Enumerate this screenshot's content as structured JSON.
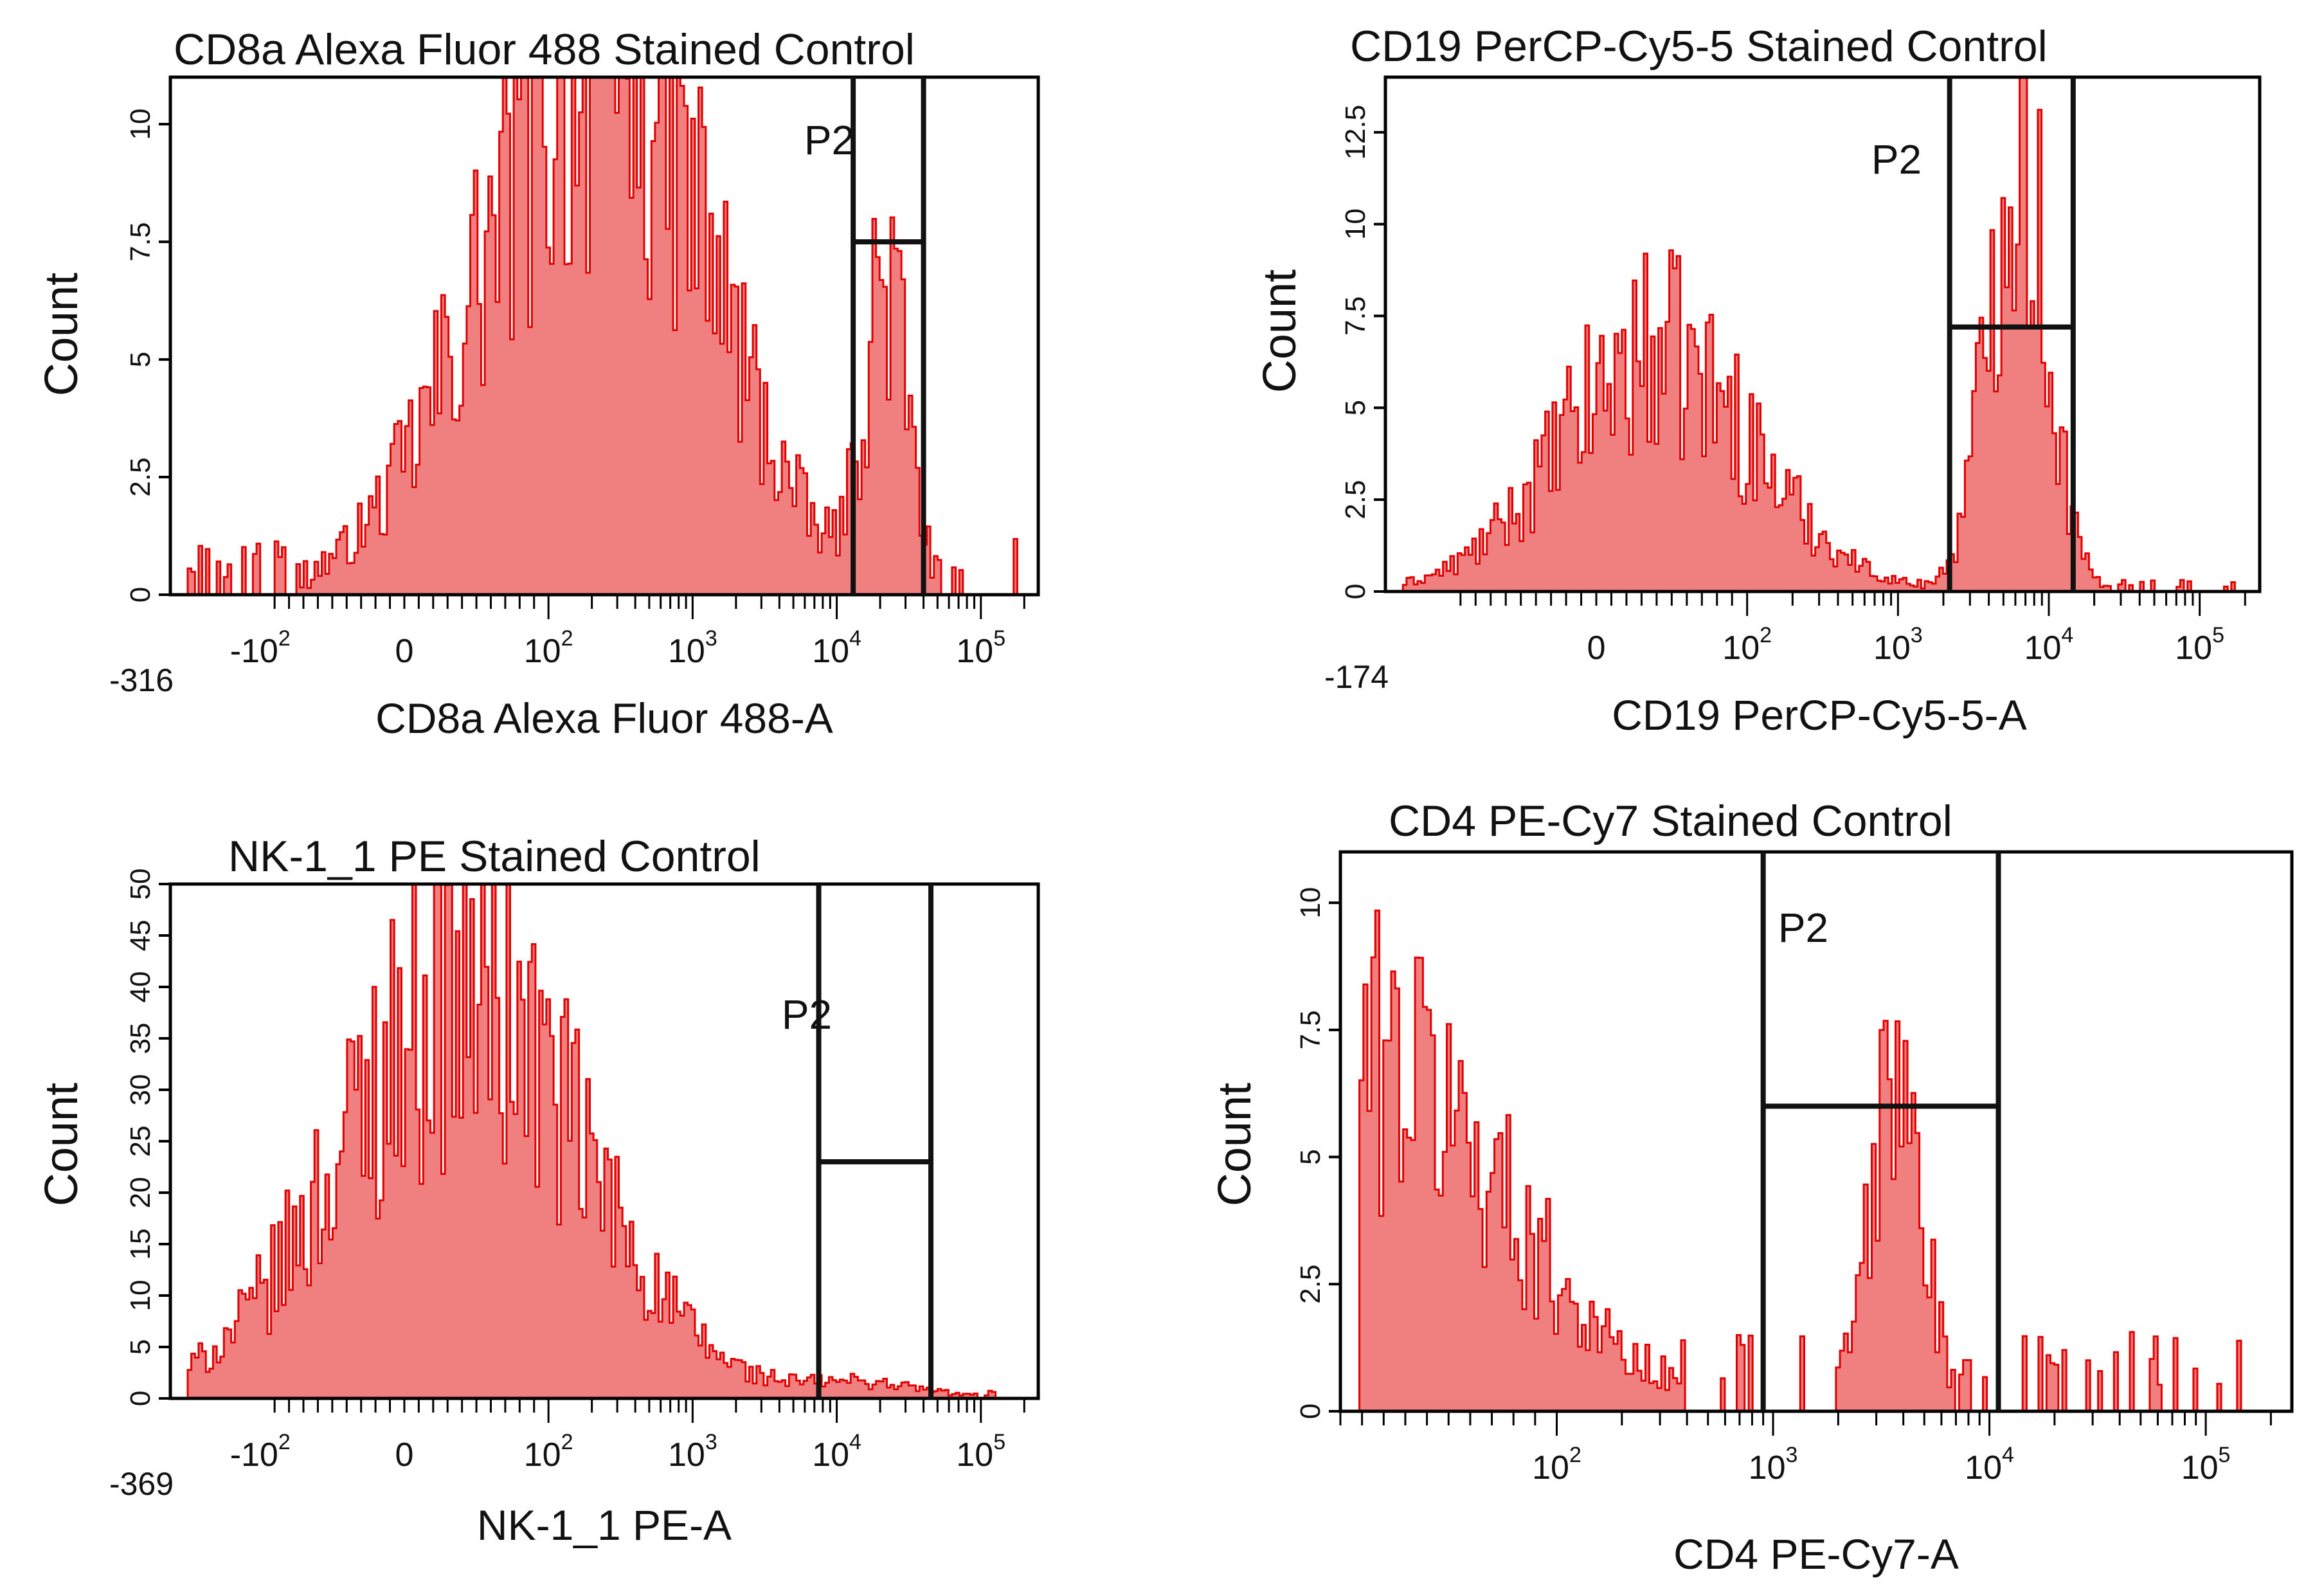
{
  "figure": "Flow cytometry stained-control histograms",
  "colors": {
    "fill": "#f08080",
    "stroke": "#e00000",
    "frame": "#000000",
    "gate": "#111111"
  },
  "chart_data": [
    {
      "id": "cd8a",
      "type": "histogram",
      "title": "CD8a Alexa Fluor 488 Stained Control",
      "xlabel": "CD8a Alexa Fluor 488-A",
      "ylabel": "Count",
      "xscale": "biexponential",
      "xlim": [
        -420,
        250000
      ],
      "ylim": [
        0,
        11
      ],
      "ytick_values": [
        0,
        2.5,
        5,
        7.5,
        10
      ],
      "ytick_labels": [
        "0",
        "2.5",
        "5",
        "7.5",
        "10"
      ],
      "xtick_labels": [
        {
          "value": -100,
          "base": "-10",
          "exp": "2"
        },
        {
          "value": 0,
          "base": "0",
          "exp": ""
        },
        {
          "value": 100,
          "base": "10",
          "exp": "2"
        },
        {
          "value": 1000,
          "base": "10",
          "exp": "3"
        },
        {
          "value": 10000,
          "base": "10",
          "exp": "4"
        },
        {
          "value": 100000,
          "base": "10",
          "exp": "5"
        }
      ],
      "axis_min_label": "-316",
      "gate": {
        "name": "P2",
        "x_range": [
          13000,
          40000
        ],
        "level": 7.5
      },
      "peaks": [
        {
          "center": 150,
          "height": 9.5,
          "width": 0.45
        },
        {
          "center": 600,
          "height": 3.5,
          "width": 0.35
        },
        {
          "center": 22000,
          "height": 6.5,
          "width": 0.09
        }
      ],
      "baseline": 0.6
    },
    {
      "id": "cd19",
      "type": "histogram",
      "title": "CD19 PerCP-Cy5-5 Stained Control",
      "xlabel": "CD19 PerCP-Cy5-5-A",
      "ylabel": "Count",
      "xscale": "biexponential",
      "xlim": [
        -250,
        250000
      ],
      "ylim": [
        0,
        14
      ],
      "ytick_values": [
        0,
        2.5,
        5,
        7.5,
        10,
        12.5
      ],
      "ytick_labels": [
        "0",
        "2.5",
        "5",
        "7.5",
        "10",
        "12.5"
      ],
      "xtick_labels": [
        {
          "value": 0,
          "base": "0",
          "exp": ""
        },
        {
          "value": 100,
          "base": "10",
          "exp": "2"
        },
        {
          "value": 1000,
          "base": "10",
          "exp": "3"
        },
        {
          "value": 10000,
          "base": "10",
          "exp": "4"
        },
        {
          "value": 100000,
          "base": "10",
          "exp": "5"
        }
      ],
      "axis_min_label": "-174",
      "gate": {
        "name": "P2",
        "x_range": [
          2200,
          14500
        ],
        "level": 7.2
      },
      "peaks": [
        {
          "center": 40,
          "height": 6.5,
          "width": 0.4
        },
        {
          "center": 6200,
          "height": 12.5,
          "width": 0.12
        }
      ],
      "baseline": 0.2
    },
    {
      "id": "nk11",
      "type": "histogram",
      "title": "NK-1_1 PE Stained Control",
      "xlabel": "NK-1_1 PE-A",
      "ylabel": "Count",
      "xscale": "biexponential",
      "xlim": [
        -420,
        250000
      ],
      "ylim": [
        0,
        50
      ],
      "ytick_values": [
        0,
        5,
        10,
        15,
        20,
        25,
        30,
        35,
        40,
        45,
        50
      ],
      "ytick_labels": [
        "0",
        "5",
        "10",
        "15",
        "20",
        "25",
        "30",
        "35",
        "40",
        "45",
        "50"
      ],
      "xtick_labels": [
        {
          "value": -100,
          "base": "-10",
          "exp": "2"
        },
        {
          "value": 0,
          "base": "0",
          "exp": ""
        },
        {
          "value": 100,
          "base": "10",
          "exp": "2"
        },
        {
          "value": 1000,
          "base": "10",
          "exp": "3"
        },
        {
          "value": 10000,
          "base": "10",
          "exp": "4"
        },
        {
          "value": 100000,
          "base": "10",
          "exp": "5"
        }
      ],
      "axis_min_label": "-369",
      "gate": {
        "name": "P2",
        "x_range": [
          7500,
          45000
        ],
        "level": 23
      },
      "peaks": [
        {
          "center": 40,
          "height": 40,
          "width": 0.5
        },
        {
          "center": 15000,
          "height": 1.5,
          "width": 0.25
        }
      ],
      "baseline": 0.4
    },
    {
      "id": "cd4",
      "type": "histogram",
      "title": "CD4 PE-Cy7 Stained Control",
      "xlabel": "CD4 PE-Cy7-A",
      "ylabel": "Count",
      "xscale": "biexponential",
      "xlim": [
        0,
        250000
      ],
      "ylim": [
        0,
        11
      ],
      "ytick_values": [
        0,
        2.5,
        5,
        7.5,
        10
      ],
      "ytick_labels": [
        "0",
        "2.5",
        "5",
        "7.5",
        "10"
      ],
      "xtick_labels": [
        {
          "value": 100,
          "base": "10",
          "exp": "2"
        },
        {
          "value": 1000,
          "base": "10",
          "exp": "3"
        },
        {
          "value": 10000,
          "base": "10",
          "exp": "4"
        },
        {
          "value": 100000,
          "base": "10",
          "exp": "5"
        }
      ],
      "axis_min_label": "",
      "gate": {
        "name": "P2",
        "x_range": [
          900,
          11000
        ],
        "level": 6
      },
      "peaks": [
        {
          "center": 15,
          "height": 7,
          "width": 0.5
        },
        {
          "center": 3700,
          "height": 6.5,
          "width": 0.1
        }
      ],
      "baseline": 0.8
    }
  ]
}
